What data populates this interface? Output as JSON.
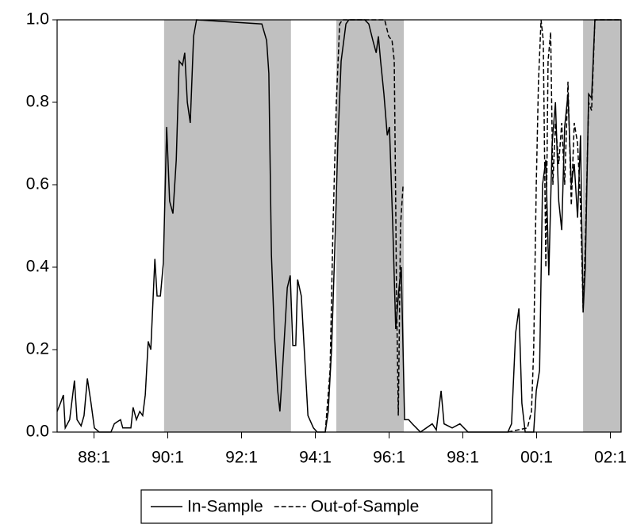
{
  "chart_data": {
    "type": "line",
    "xlim": [
      1987,
      2002.29
    ],
    "ylim": [
      0,
      1
    ],
    "xticks": [
      {
        "value": 1988,
        "label": "88:1"
      },
      {
        "value": 1990,
        "label": "90:1"
      },
      {
        "value": 1992,
        "label": "92:1"
      },
      {
        "value": 1994,
        "label": "94:1"
      },
      {
        "value": 1996,
        "label": "96:1"
      },
      {
        "value": 1998,
        "label": "98:1"
      },
      {
        "value": 2000,
        "label": "00:1"
      },
      {
        "value": 2002,
        "label": "02:1"
      }
    ],
    "yticks": [
      {
        "value": 0,
        "label": "0.0"
      },
      {
        "value": 0.2,
        "label": "0.2"
      },
      {
        "value": 0.4,
        "label": "0.4"
      },
      {
        "value": 0.6,
        "label": "0.6"
      },
      {
        "value": 0.8,
        "label": "0.8"
      },
      {
        "value": 1,
        "label": "1.0"
      }
    ],
    "shaded_periods": [
      [
        1989.9,
        1993.34
      ],
      [
        1994.57,
        1996.4
      ],
      [
        2001.26,
        2002.29
      ]
    ],
    "shade_color": "#c0c0c0",
    "legend": "bottom",
    "series": [
      {
        "name": "In-Sample",
        "color": "#000000",
        "dash": false,
        "x": [
          1987.0,
          1987.09,
          1987.17,
          1987.22,
          1987.34,
          1987.47,
          1987.54,
          1987.65,
          1987.73,
          1987.82,
          1987.92,
          1988.01,
          1988.14,
          1988.46,
          1988.55,
          1988.63,
          1988.72,
          1988.78,
          1989.0,
          1989.06,
          1989.15,
          1989.24,
          1989.32,
          1989.39,
          1989.47,
          1989.54,
          1989.65,
          1989.71,
          1989.8,
          1989.88,
          1989.97,
          1990.05,
          1990.14,
          1990.23,
          1990.31,
          1990.4,
          1990.46,
          1990.53,
          1990.61,
          1990.7,
          1990.78,
          1992.55,
          1992.68,
          1992.74,
          1992.81,
          1992.89,
          1992.98,
          1993.04,
          1993.11,
          1993.24,
          1993.32,
          1993.39,
          1993.47,
          1993.52,
          1993.62,
          1993.8,
          1993.95,
          1994.05,
          1994.27,
          1994.35,
          1994.44,
          1994.53,
          1994.61,
          1994.7,
          1994.83,
          1994.91,
          1995.34,
          1995.45,
          1995.56,
          1995.65,
          1995.71,
          1995.77,
          1995.86,
          1995.95,
          1996.01,
          1996.1,
          1996.18,
          1996.27,
          1996.33,
          1996.42,
          1996.53,
          1996.63,
          1996.74,
          1996.85,
          1997.17,
          1997.28,
          1997.41,
          1997.49,
          1997.71,
          1997.92,
          1998.14,
          1999.22,
          1999.32,
          1999.43,
          1999.52,
          1999.6,
          1999.69,
          1999.92,
          1999.99,
          2000.08,
          2000.16,
          2000.25,
          2000.33,
          2000.42,
          2000.51,
          2000.6,
          2000.68,
          2000.76,
          2000.85,
          2000.94,
          2001.02,
          2001.11,
          2001.19,
          2001.26,
          2001.32,
          2001.41,
          2001.49,
          2001.58,
          2002.29
        ],
        "values": [
          0.05,
          0.07,
          0.09,
          0.01,
          0.03,
          0.125,
          0.03,
          0.015,
          0.04,
          0.13,
          0.07,
          0.01,
          0,
          0,
          0.02,
          0.025,
          0.03,
          0.01,
          0.01,
          0.06,
          0.03,
          0.05,
          0.04,
          0.09,
          0.22,
          0.2,
          0.42,
          0.33,
          0.33,
          0.41,
          0.74,
          0.56,
          0.53,
          0.66,
          0.9,
          0.89,
          0.92,
          0.8,
          0.75,
          0.96,
          1,
          0.99,
          0.95,
          0.87,
          0.43,
          0.24,
          0.1,
          0.05,
          0.15,
          0.35,
          0.38,
          0.21,
          0.21,
          0.37,
          0.33,
          0.04,
          0.01,
          0,
          0,
          0.05,
          0.2,
          0.45,
          0.7,
          0.9,
          0.99,
          1,
          1,
          0.99,
          0.95,
          0.92,
          0.96,
          0.9,
          0.82,
          0.72,
          0.74,
          0.5,
          0.25,
          0.35,
          0.4,
          0.03,
          0.03,
          0.02,
          0.01,
          0,
          0.02,
          0.005,
          0.1,
          0.02,
          0.01,
          0.02,
          0,
          0,
          0.02,
          0.24,
          0.3,
          0.07,
          0,
          0,
          0.1,
          0.15,
          0.6,
          0.66,
          0.38,
          0.7,
          0.8,
          0.56,
          0.49,
          0.74,
          0.82,
          0.6,
          0.65,
          0.52,
          0.72,
          0.29,
          0.4,
          0.82,
          0.81,
          1,
          1
        ]
      },
      {
        "name": "Out-of-Sample",
        "color": "#000000",
        "dash": true,
        "x": [
          1994.27,
          1994.4,
          1994.48,
          1994.57,
          1994.66,
          1994.74,
          1995.88,
          1995.99,
          1996.08,
          1996.14,
          1996.18,
          1996.2,
          1996.25,
          1996.31,
          1996.38,
          null,
          1999.22,
          1999.75,
          1999.86,
          1999.92,
          1999.99,
          2000.05,
          2000.12,
          2000.18,
          2000.25,
          2000.31,
          2000.38,
          2000.44,
          2000.51,
          2000.6,
          2000.68,
          2000.76,
          2000.85,
          2000.94,
          2001.02,
          2001.11,
          2001.19,
          2001.26,
          2001.32,
          2001.41,
          2001.49,
          2001.58,
          2002.29
        ],
        "values": [
          0,
          0.15,
          0.5,
          0.8,
          0.99,
          1,
          1,
          0.96,
          0.95,
          0.9,
          0.55,
          0.35,
          0.04,
          0.5,
          0.6,
          null,
          0,
          0.01,
          0.05,
          0.2,
          0.6,
          0.85,
          1,
          0.95,
          0.4,
          0.9,
          0.97,
          0.6,
          0.75,
          0.65,
          0.75,
          0.6,
          0.85,
          0.55,
          0.75,
          0.7,
          0.55,
          0.3,
          0.45,
          0.8,
          0.78,
          1,
          1
        ]
      }
    ]
  }
}
